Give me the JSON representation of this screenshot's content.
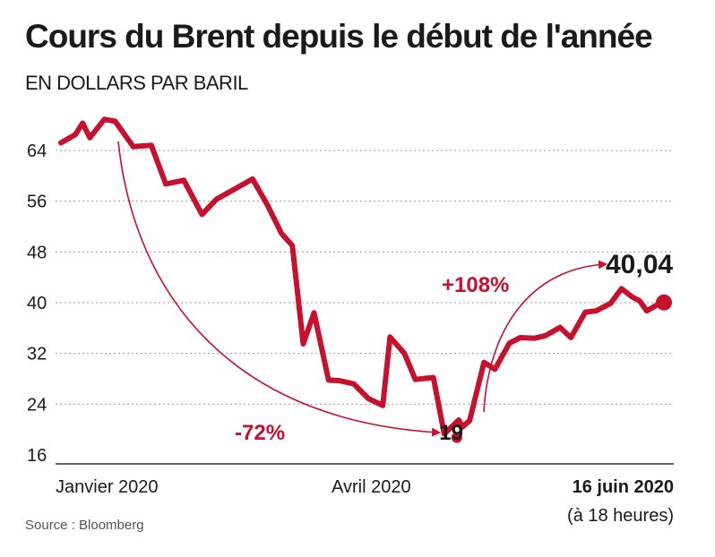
{
  "title": "Cours du Brent depuis le début de l'année",
  "subtitle": "EN DOLLARS PAR BARIL",
  "source": "Source : Bloomberg",
  "colors": {
    "line": "#c8102e",
    "grid": "#9a9a9a",
    "axis": "#333333",
    "text": "#1a1a1a"
  },
  "chart_data": {
    "type": "line",
    "title": "Cours du Brent depuis le début de l'année",
    "subtitle": "EN DOLLARS PAR BARIL",
    "ylim": [
      16,
      68
    ],
    "yticks": [
      "64",
      "56",
      "48",
      "40",
      "32",
      "24",
      "16"
    ],
    "ytick_values": [
      64,
      56,
      48,
      40,
      32,
      24,
      16
    ],
    "xtick_labels": [
      "Janvier 2020",
      "Avril 2020"
    ],
    "end_label": [
      "16 juin 2020",
      "(à 18 heures)"
    ],
    "grid": true,
    "series": [
      {
        "x": [
          "2020-01-02",
          "2020-01-06",
          "2020-01-08",
          "2020-01-10",
          "2020-01-14",
          "2020-01-17",
          "2020-01-22",
          "2020-01-27",
          "2020-01-31",
          "2020-02-05",
          "2020-02-10",
          "2020-02-14",
          "2020-02-19",
          "2020-02-24",
          "2020-02-28",
          "2020-03-03",
          "2020-03-06",
          "2020-03-09",
          "2020-03-12",
          "2020-03-16",
          "2020-03-19",
          "2020-03-23",
          "2020-03-27",
          "2020-03-31",
          "2020-04-02",
          "2020-04-06",
          "2020-04-09",
          "2020-04-14",
          "2020-04-17",
          "2020-04-21",
          "2020-04-22",
          "2020-04-24",
          "2020-04-28",
          "2020-05-01",
          "2020-05-05",
          "2020-05-08",
          "2020-05-12",
          "2020-05-15",
          "2020-05-19",
          "2020-05-22",
          "2020-05-26",
          "2020-05-29",
          "2020-06-02",
          "2020-06-05",
          "2020-06-08",
          "2020-06-10",
          "2020-06-12",
          "2020-06-16"
        ],
        "values": [
          65.2,
          66.5,
          68.3,
          66.0,
          68.9,
          68.6,
          64.6,
          64.8,
          58.7,
          59.3,
          53.9,
          56.3,
          57.9,
          59.5,
          55.5,
          50.9,
          49.0,
          33.5,
          38.4,
          27.8,
          27.7,
          27.2,
          24.9,
          23.8,
          34.6,
          32.0,
          27.9,
          28.2,
          19.3,
          21.5,
          20.4,
          21.4,
          30.6,
          29.5,
          33.6,
          34.5,
          34.4,
          34.8,
          36.1,
          34.5,
          38.5,
          38.7,
          39.9,
          42.2,
          40.9,
          40.3,
          38.7,
          40.04
        ]
      }
    ],
    "annotations": [
      {
        "text": "-72%"
      },
      {
        "text": "+108%"
      },
      {
        "text": "19"
      },
      {
        "text": "40,04"
      }
    ]
  }
}
